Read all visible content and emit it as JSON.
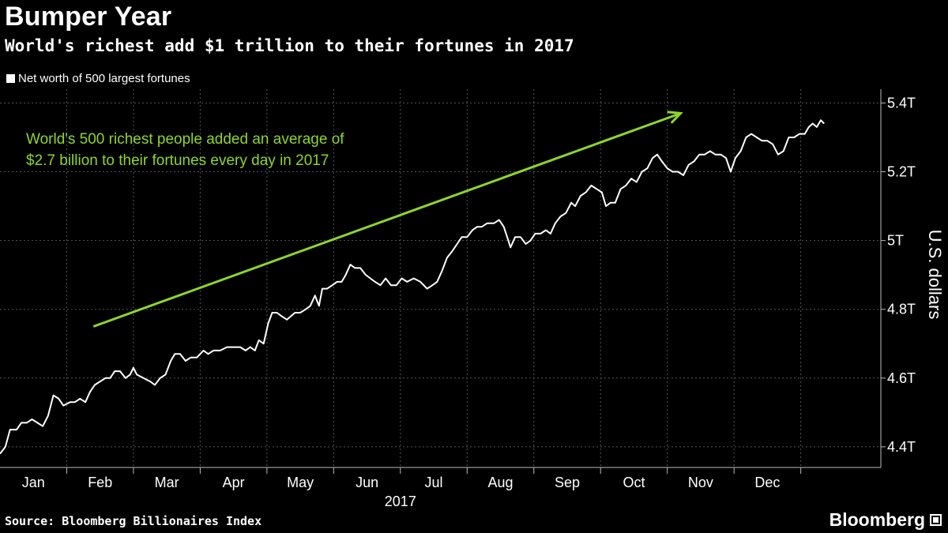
{
  "header": {
    "title": "Bumper Year",
    "subtitle": "World's richest add $1 trillion to their fortunes in 2017"
  },
  "footer": {
    "source": "Source: Bloomberg Billionaires Index",
    "brand": "Bloomberg",
    "brand_icon": "bloomberg-square-icon"
  },
  "colors": {
    "background": "#000000",
    "line": "#ffffff",
    "annotation": "#8ed62b",
    "grid": "#555555"
  },
  "chart_data": {
    "type": "line",
    "legend": {
      "label": "Net worth of 500 largest fortunes",
      "placement": "top-left"
    },
    "ylabel": "U.S. dollars",
    "ylim": [
      4.34,
      5.44
    ],
    "xlim": [
      0,
      13.2
    ],
    "grid": true,
    "yticks": [
      {
        "value": 5.4,
        "label": "5.4T"
      },
      {
        "value": 5.2,
        "label": "5.2T"
      },
      {
        "value": 5.0,
        "label": "5T"
      },
      {
        "value": 4.8,
        "label": "4.8T"
      },
      {
        "value": 4.6,
        "label": "4.6T"
      },
      {
        "value": 4.4,
        "label": "4.4T"
      }
    ],
    "xticks": [
      {
        "value": 0.5,
        "label": "Jan"
      },
      {
        "value": 1.5,
        "label": "Feb"
      },
      {
        "value": 2.5,
        "label": "Mar"
      },
      {
        "value": 3.5,
        "label": "Apr"
      },
      {
        "value": 4.5,
        "label": "May"
      },
      {
        "value": 5.5,
        "label": "Jun"
      },
      {
        "value": 6.5,
        "label": "Jul"
      },
      {
        "value": 7.5,
        "label": "Aug"
      },
      {
        "value": 8.5,
        "label": "Sep"
      },
      {
        "value": 9.5,
        "label": "Oct"
      },
      {
        "value": 10.5,
        "label": "Nov"
      },
      {
        "value": 11.5,
        "label": "Dec"
      }
    ],
    "xgrid": [
      1,
      2,
      3,
      4,
      5,
      6,
      7,
      8,
      9,
      10,
      11,
      12
    ],
    "xlabel_year": {
      "value": 6.0,
      "label": "2017"
    },
    "annotation": {
      "lines": [
        "World's 500 richest people added an average of",
        "$2.7 billion to their fortunes every day in 2017"
      ],
      "arrow_from": [
        1.4,
        4.75
      ],
      "arrow_to": [
        10.2,
        5.37
      ]
    },
    "series": [
      {
        "values": [
          [
            0.0,
            4.38
          ],
          [
            0.08,
            4.4
          ],
          [
            0.15,
            4.45
          ],
          [
            0.25,
            4.45
          ],
          [
            0.32,
            4.47
          ],
          [
            0.4,
            4.47
          ],
          [
            0.48,
            4.48
          ],
          [
            0.56,
            4.47
          ],
          [
            0.64,
            4.46
          ],
          [
            0.72,
            4.49
          ],
          [
            0.8,
            4.55
          ],
          [
            0.88,
            4.54
          ],
          [
            0.95,
            4.52
          ],
          [
            1.05,
            4.53
          ],
          [
            1.12,
            4.53
          ],
          [
            1.2,
            4.54
          ],
          [
            1.28,
            4.53
          ],
          [
            1.35,
            4.56
          ],
          [
            1.42,
            4.58
          ],
          [
            1.5,
            4.59
          ],
          [
            1.58,
            4.6
          ],
          [
            1.65,
            4.6
          ],
          [
            1.72,
            4.62
          ],
          [
            1.8,
            4.62
          ],
          [
            1.88,
            4.6
          ],
          [
            1.95,
            4.61
          ],
          [
            2.0,
            4.63
          ],
          [
            2.05,
            4.61
          ],
          [
            2.15,
            4.6
          ],
          [
            2.25,
            4.59
          ],
          [
            2.32,
            4.58
          ],
          [
            2.4,
            4.6
          ],
          [
            2.48,
            4.61
          ],
          [
            2.56,
            4.65
          ],
          [
            2.62,
            4.67
          ],
          [
            2.7,
            4.67
          ],
          [
            2.78,
            4.65
          ],
          [
            2.86,
            4.66
          ],
          [
            2.95,
            4.66
          ],
          [
            3.05,
            4.68
          ],
          [
            3.12,
            4.67
          ],
          [
            3.2,
            4.68
          ],
          [
            3.3,
            4.68
          ],
          [
            3.4,
            4.69
          ],
          [
            3.5,
            4.69
          ],
          [
            3.6,
            4.69
          ],
          [
            3.68,
            4.68
          ],
          [
            3.75,
            4.69
          ],
          [
            3.82,
            4.68
          ],
          [
            3.88,
            4.71
          ],
          [
            3.95,
            4.7
          ],
          [
            4.02,
            4.76
          ],
          [
            4.08,
            4.79
          ],
          [
            4.15,
            4.79
          ],
          [
            4.22,
            4.78
          ],
          [
            4.3,
            4.77
          ],
          [
            4.36,
            4.78
          ],
          [
            4.42,
            4.79
          ],
          [
            4.5,
            4.79
          ],
          [
            4.58,
            4.8
          ],
          [
            4.65,
            4.81
          ],
          [
            4.72,
            4.84
          ],
          [
            4.78,
            4.81
          ],
          [
            4.83,
            4.86
          ],
          [
            4.9,
            4.86
          ],
          [
            4.98,
            4.87
          ],
          [
            5.05,
            4.88
          ],
          [
            5.12,
            4.88
          ],
          [
            5.18,
            4.9
          ],
          [
            5.25,
            4.93
          ],
          [
            5.32,
            4.92
          ],
          [
            5.4,
            4.92
          ],
          [
            5.48,
            4.9
          ],
          [
            5.55,
            4.89
          ],
          [
            5.62,
            4.88
          ],
          [
            5.7,
            4.87
          ],
          [
            5.78,
            4.89
          ],
          [
            5.86,
            4.87
          ],
          [
            5.94,
            4.87
          ],
          [
            6.02,
            4.89
          ],
          [
            6.1,
            4.88
          ],
          [
            6.2,
            4.89
          ],
          [
            6.3,
            4.88
          ],
          [
            6.4,
            4.86
          ],
          [
            6.48,
            4.87
          ],
          [
            6.55,
            4.88
          ],
          [
            6.62,
            4.91
          ],
          [
            6.7,
            4.95
          ],
          [
            6.78,
            4.97
          ],
          [
            6.85,
            4.99
          ],
          [
            6.92,
            5.01
          ],
          [
            7.0,
            5.01
          ],
          [
            7.08,
            5.03
          ],
          [
            7.15,
            5.04
          ],
          [
            7.22,
            5.04
          ],
          [
            7.3,
            5.05
          ],
          [
            7.4,
            5.05
          ],
          [
            7.48,
            5.06
          ],
          [
            7.55,
            5.04
          ],
          [
            7.6,
            5.01
          ],
          [
            7.65,
            4.98
          ],
          [
            7.72,
            5.01
          ],
          [
            7.8,
            5.01
          ],
          [
            7.88,
            4.99
          ],
          [
            7.95,
            5.0
          ],
          [
            8.02,
            5.02
          ],
          [
            8.1,
            5.02
          ],
          [
            8.18,
            5.03
          ],
          [
            8.25,
            5.02
          ],
          [
            8.32,
            5.05
          ],
          [
            8.4,
            5.07
          ],
          [
            8.48,
            5.08
          ],
          [
            8.56,
            5.11
          ],
          [
            8.62,
            5.1
          ],
          [
            8.7,
            5.13
          ],
          [
            8.78,
            5.14
          ],
          [
            8.86,
            5.16
          ],
          [
            8.94,
            5.15
          ],
          [
            9.02,
            5.14
          ],
          [
            9.08,
            5.1
          ],
          [
            9.15,
            5.11
          ],
          [
            9.22,
            5.11
          ],
          [
            9.3,
            5.15
          ],
          [
            9.38,
            5.16
          ],
          [
            9.46,
            5.18
          ],
          [
            9.54,
            5.17
          ],
          [
            9.62,
            5.2
          ],
          [
            9.7,
            5.21
          ],
          [
            9.78,
            5.24
          ],
          [
            9.85,
            5.25
          ],
          [
            9.92,
            5.23
          ],
          [
            10.0,
            5.21
          ],
          [
            10.08,
            5.2
          ],
          [
            10.16,
            5.2
          ],
          [
            10.24,
            5.19
          ],
          [
            10.32,
            5.22
          ],
          [
            10.4,
            5.23
          ],
          [
            10.48,
            5.25
          ],
          [
            10.56,
            5.25
          ],
          [
            10.64,
            5.26
          ],
          [
            10.72,
            5.25
          ],
          [
            10.8,
            5.25
          ],
          [
            10.88,
            5.24
          ],
          [
            10.95,
            5.2
          ],
          [
            11.02,
            5.24
          ],
          [
            11.1,
            5.26
          ],
          [
            11.18,
            5.3
          ],
          [
            11.26,
            5.31
          ],
          [
            11.34,
            5.3
          ],
          [
            11.42,
            5.29
          ],
          [
            11.5,
            5.29
          ],
          [
            11.58,
            5.28
          ],
          [
            11.66,
            5.25
          ],
          [
            11.74,
            5.26
          ],
          [
            11.82,
            5.3
          ],
          [
            11.9,
            5.3
          ],
          [
            11.98,
            5.31
          ],
          [
            12.06,
            5.31
          ],
          [
            12.12,
            5.33
          ],
          [
            12.18,
            5.34
          ],
          [
            12.24,
            5.33
          ],
          [
            12.3,
            5.35
          ],
          [
            12.35,
            5.34
          ]
        ]
      }
    ]
  }
}
